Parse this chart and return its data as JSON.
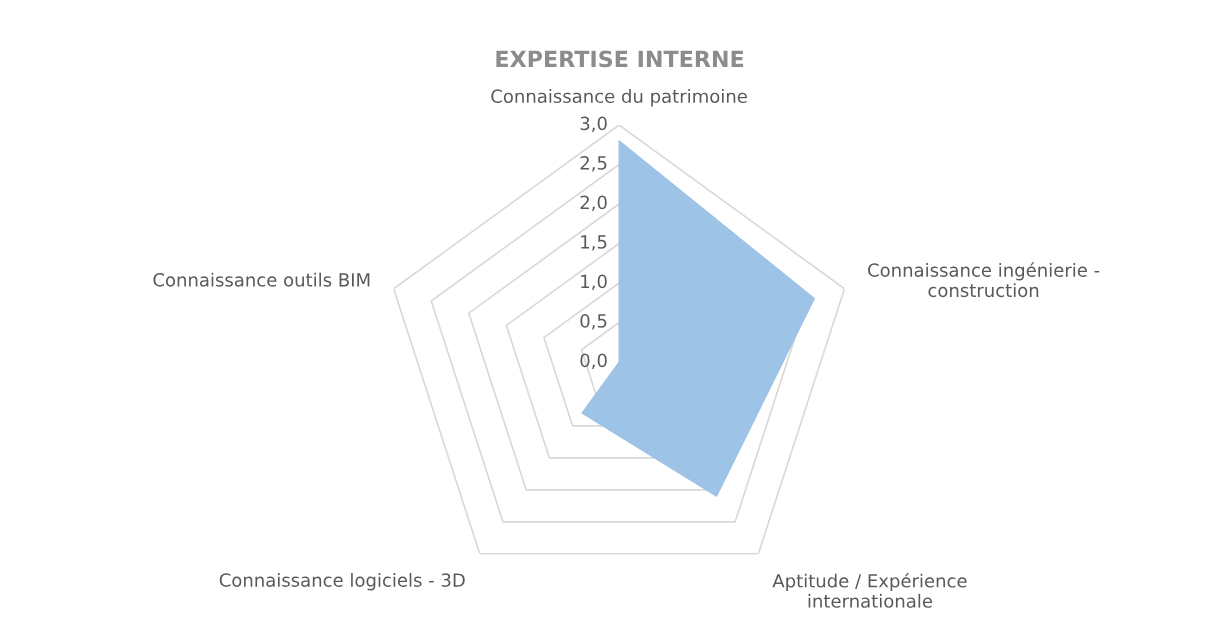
{
  "chart_data": {
    "type": "radar",
    "title": "EXPERTISE INTERNE",
    "categories": [
      "Connaissance du patrimoine",
      "Connaissance ingénierie -\nconstruction",
      "Aptitude / Expérience\ninternationale",
      "Connaissance logiciels - 3D",
      "Connaissance outils BIM"
    ],
    "series": [
      {
        "color": "#9dc3e6",
        "values": [
          2.8,
          2.6,
          2.1,
          0.8,
          0.0
        ]
      }
    ],
    "ylim": [
      0,
      3
    ],
    "yticks": [
      {
        "value": 0,
        "label": "0,0"
      },
      {
        "value": 0.5,
        "label": "0,5"
      },
      {
        "value": 1,
        "label": "1,0"
      },
      {
        "value": 1.5,
        "label": "1,5"
      },
      {
        "value": 2,
        "label": "2,0"
      },
      {
        "value": 2.5,
        "label": "2,5"
      },
      {
        "value": 3,
        "label": "3,0"
      }
    ],
    "grid": true,
    "legend": false
  }
}
